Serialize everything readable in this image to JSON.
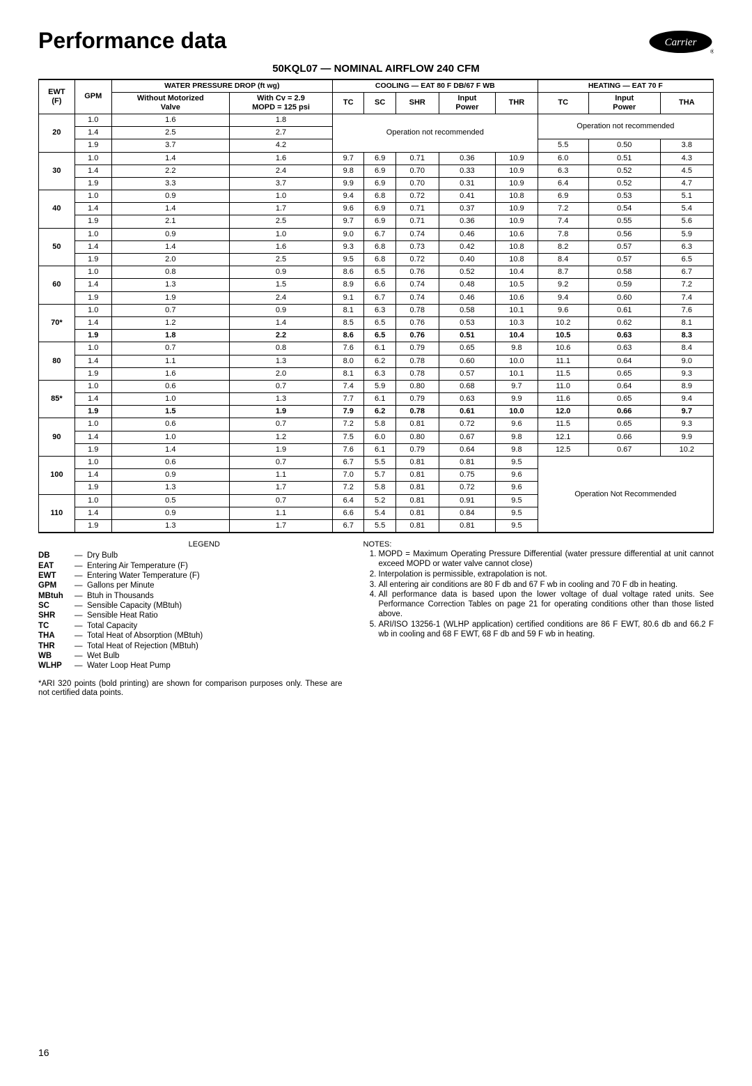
{
  "page_title": "Performance data",
  "brand": "Carrier",
  "subtitle": "50KQL07 — NOMINAL AIRFLOW 240 CFM",
  "page_number": "16",
  "headers": {
    "ewt": "EWT\n(F)",
    "gpm": "GPM",
    "wpd": "WATER PRESSURE DROP (ft wg)",
    "without": "Without Motorized\nValve",
    "with": "With Cv = 2.9\nMOPD = 125 psi",
    "cooling": "COOLING — EAT 80 F DB/67 F WB",
    "heating": "HEATING — EAT 70 F",
    "tc": "TC",
    "sc": "SC",
    "shr": "SHR",
    "inp": "Input\nPower",
    "thr": "THR",
    "tha": "THA"
  },
  "op_not_rec": "Operation not recommended",
  "op_not_rec2": "Operation Not Recommended",
  "groups": [
    {
      "ewt": "20",
      "rows": [
        {
          "gpm": "1.0",
          "wo": "1.6",
          "wi": "1.8",
          "c": null,
          "h": null
        },
        {
          "gpm": "1.4",
          "wo": "2.5",
          "wi": "2.7",
          "c": null,
          "h": null
        },
        {
          "gpm": "1.9",
          "wo": "3.7",
          "wi": "4.2",
          "c": null,
          "h": [
            "5.5",
            "0.50",
            "3.8"
          ]
        }
      ],
      "cool_note": "top",
      "heat_note": "top2"
    },
    {
      "ewt": "30",
      "rows": [
        {
          "gpm": "1.0",
          "wo": "1.4",
          "wi": "1.6",
          "c": [
            "9.7",
            "6.9",
            "0.71",
            "0.36",
            "10.9"
          ],
          "h": [
            "6.0",
            "0.51",
            "4.3"
          ]
        },
        {
          "gpm": "1.4",
          "wo": "2.2",
          "wi": "2.4",
          "c": [
            "9.8",
            "6.9",
            "0.70",
            "0.33",
            "10.9"
          ],
          "h": [
            "6.3",
            "0.52",
            "4.5"
          ]
        },
        {
          "gpm": "1.9",
          "wo": "3.3",
          "wi": "3.7",
          "c": [
            "9.9",
            "6.9",
            "0.70",
            "0.31",
            "10.9"
          ],
          "h": [
            "6.4",
            "0.52",
            "4.7"
          ]
        }
      ]
    },
    {
      "ewt": "40",
      "rows": [
        {
          "gpm": "1.0",
          "wo": "0.9",
          "wi": "1.0",
          "c": [
            "9.4",
            "6.8",
            "0.72",
            "0.41",
            "10.8"
          ],
          "h": [
            "6.9",
            "0.53",
            "5.1"
          ]
        },
        {
          "gpm": "1.4",
          "wo": "1.4",
          "wi": "1.7",
          "c": [
            "9.6",
            "6.9",
            "0.71",
            "0.37",
            "10.9"
          ],
          "h": [
            "7.2",
            "0.54",
            "5.4"
          ]
        },
        {
          "gpm": "1.9",
          "wo": "2.1",
          "wi": "2.5",
          "c": [
            "9.7",
            "6.9",
            "0.71",
            "0.36",
            "10.9"
          ],
          "h": [
            "7.4",
            "0.55",
            "5.6"
          ]
        }
      ]
    },
    {
      "ewt": "50",
      "rows": [
        {
          "gpm": "1.0",
          "wo": "0.9",
          "wi": "1.0",
          "c": [
            "9.0",
            "6.7",
            "0.74",
            "0.46",
            "10.6"
          ],
          "h": [
            "7.8",
            "0.56",
            "5.9"
          ]
        },
        {
          "gpm": "1.4",
          "wo": "1.4",
          "wi": "1.6",
          "c": [
            "9.3",
            "6.8",
            "0.73",
            "0.42",
            "10.8"
          ],
          "h": [
            "8.2",
            "0.57",
            "6.3"
          ]
        },
        {
          "gpm": "1.9",
          "wo": "2.0",
          "wi": "2.5",
          "c": [
            "9.5",
            "6.8",
            "0.72",
            "0.40",
            "10.8"
          ],
          "h": [
            "8.4",
            "0.57",
            "6.5"
          ]
        }
      ]
    },
    {
      "ewt": "60",
      "rows": [
        {
          "gpm": "1.0",
          "wo": "0.8",
          "wi": "0.9",
          "c": [
            "8.6",
            "6.5",
            "0.76",
            "0.52",
            "10.4"
          ],
          "h": [
            "8.7",
            "0.58",
            "6.7"
          ]
        },
        {
          "gpm": "1.4",
          "wo": "1.3",
          "wi": "1.5",
          "c": [
            "8.9",
            "6.6",
            "0.74",
            "0.48",
            "10.5"
          ],
          "h": [
            "9.2",
            "0.59",
            "7.2"
          ]
        },
        {
          "gpm": "1.9",
          "wo": "1.9",
          "wi": "2.4",
          "c": [
            "9.1",
            "6.7",
            "0.74",
            "0.46",
            "10.6"
          ],
          "h": [
            "9.4",
            "0.60",
            "7.4"
          ]
        }
      ]
    },
    {
      "ewt": "70*",
      "rows": [
        {
          "gpm": "1.0",
          "wo": "0.7",
          "wi": "0.9",
          "c": [
            "8.1",
            "6.3",
            "0.78",
            "0.58",
            "10.1"
          ],
          "h": [
            "9.6",
            "0.61",
            "7.6"
          ]
        },
        {
          "gpm": "1.4",
          "wo": "1.2",
          "wi": "1.4",
          "c": [
            "8.5",
            "6.5",
            "0.76",
            "0.53",
            "10.3"
          ],
          "h": [
            "10.2",
            "0.62",
            "8.1"
          ]
        },
        {
          "bold": true,
          "gpm": "1.9",
          "wo": "1.8",
          "wi": "2.2",
          "c": [
            "8.6",
            "6.5",
            "0.76",
            "0.51",
            "10.4"
          ],
          "h": [
            "10.5",
            "0.63",
            "8.3"
          ]
        }
      ]
    },
    {
      "ewt": "80",
      "rows": [
        {
          "gpm": "1.0",
          "wo": "0.7",
          "wi": "0.8",
          "c": [
            "7.6",
            "6.1",
            "0.79",
            "0.65",
            "9.8"
          ],
          "h": [
            "10.6",
            "0.63",
            "8.4"
          ]
        },
        {
          "gpm": "1.4",
          "wo": "1.1",
          "wi": "1.3",
          "c": [
            "8.0",
            "6.2",
            "0.78",
            "0.60",
            "10.0"
          ],
          "h": [
            "11.1",
            "0.64",
            "9.0"
          ]
        },
        {
          "gpm": "1.9",
          "wo": "1.6",
          "wi": "2.0",
          "c": [
            "8.1",
            "6.3",
            "0.78",
            "0.57",
            "10.1"
          ],
          "h": [
            "11.5",
            "0.65",
            "9.3"
          ]
        }
      ]
    },
    {
      "ewt": "85*",
      "rows": [
        {
          "gpm": "1.0",
          "wo": "0.6",
          "wi": "0.7",
          "c": [
            "7.4",
            "5.9",
            "0.80",
            "0.68",
            "9.7"
          ],
          "h": [
            "11.0",
            "0.64",
            "8.9"
          ]
        },
        {
          "gpm": "1.4",
          "wo": "1.0",
          "wi": "1.3",
          "c": [
            "7.7",
            "6.1",
            "0.79",
            "0.63",
            "9.9"
          ],
          "h": [
            "11.6",
            "0.65",
            "9.4"
          ]
        },
        {
          "bold": true,
          "gpm": "1.9",
          "wo": "1.5",
          "wi": "1.9",
          "c": [
            "7.9",
            "6.2",
            "0.78",
            "0.61",
            "10.0"
          ],
          "h": [
            "12.0",
            "0.66",
            "9.7"
          ]
        }
      ]
    },
    {
      "ewt": "90",
      "rows": [
        {
          "gpm": "1.0",
          "wo": "0.6",
          "wi": "0.7",
          "c": [
            "7.2",
            "5.8",
            "0.81",
            "0.72",
            "9.6"
          ],
          "h": [
            "11.5",
            "0.65",
            "9.3"
          ]
        },
        {
          "gpm": "1.4",
          "wo": "1.0",
          "wi": "1.2",
          "c": [
            "7.5",
            "6.0",
            "0.80",
            "0.67",
            "9.8"
          ],
          "h": [
            "12.1",
            "0.66",
            "9.9"
          ]
        },
        {
          "gpm": "1.9",
          "wo": "1.4",
          "wi": "1.9",
          "c": [
            "7.6",
            "6.1",
            "0.79",
            "0.64",
            "9.8"
          ],
          "h": [
            "12.5",
            "0.67",
            "10.2"
          ]
        }
      ]
    },
    {
      "ewt": "100",
      "rows": [
        {
          "gpm": "1.0",
          "wo": "0.6",
          "wi": "0.7",
          "c": [
            "6.7",
            "5.5",
            "0.81",
            "0.81",
            "9.5"
          ],
          "h": null
        },
        {
          "gpm": "1.4",
          "wo": "0.9",
          "wi": "1.1",
          "c": [
            "7.0",
            "5.7",
            "0.81",
            "0.75",
            "9.6"
          ],
          "h": null
        },
        {
          "gpm": "1.9",
          "wo": "1.3",
          "wi": "1.7",
          "c": [
            "7.2",
            "5.8",
            "0.81",
            "0.72",
            "9.6"
          ],
          "h": null
        }
      ],
      "heat_note": "bottom"
    },
    {
      "ewt": "110",
      "rows": [
        {
          "gpm": "1.0",
          "wo": "0.5",
          "wi": "0.7",
          "c": [
            "6.4",
            "5.2",
            "0.81",
            "0.91",
            "9.5"
          ],
          "h": null
        },
        {
          "gpm": "1.4",
          "wo": "0.9",
          "wi": "1.1",
          "c": [
            "6.6",
            "5.4",
            "0.81",
            "0.84",
            "9.5"
          ],
          "h": null
        },
        {
          "gpm": "1.9",
          "wo": "1.3",
          "wi": "1.7",
          "c": [
            "6.7",
            "5.5",
            "0.81",
            "0.81",
            "9.5"
          ],
          "h": null
        }
      ]
    }
  ],
  "legend_title": "LEGEND",
  "legend": [
    {
      "abbr": "DB",
      "def": "Dry Bulb"
    },
    {
      "abbr": "EAT",
      "def": "Entering Air Temperature (F)"
    },
    {
      "abbr": "EWT",
      "def": "Entering Water Temperature (F)"
    },
    {
      "abbr": "GPM",
      "def": "Gallons per Minute"
    },
    {
      "abbr": "MBtuh",
      "def": "Btuh in Thousands"
    },
    {
      "abbr": "SC",
      "def": "Sensible Capacity (MBtuh)"
    },
    {
      "abbr": "SHR",
      "def": "Sensible Heat Ratio"
    },
    {
      "abbr": "TC",
      "def": "Total Capacity"
    },
    {
      "abbr": "THA",
      "def": "Total Heat of Absorption (MBtuh)"
    },
    {
      "abbr": "THR",
      "def": "Total Heat of Rejection (MBtuh)"
    },
    {
      "abbr": "WB",
      "def": "Wet Bulb"
    },
    {
      "abbr": "WLHP",
      "def": "Water Loop Heat Pump"
    }
  ],
  "star_note": "*ARI 320 points (bold printing) are shown for comparison purposes only. These are not certified data points.",
  "notes_title": "NOTES:",
  "notes": [
    "MOPD = Maximum Operating Pressure Differential (water pressure differential at unit cannot exceed MOPD or water valve cannot close)",
    "Interpolation is permissible, extrapolation is not.",
    "All entering air conditions are 80 F db and 67 F wb in cooling and 70 F db in heating.",
    "All performance data is based upon the lower voltage of dual voltage rated units. See Performance Correction Tables on page 21 for operating conditions other than those listed above.",
    "ARI/ISO 13256-1 (WLHP application) certified conditions are 86 F EWT, 80.6 db and 66.2 F wb in cooling and 68 F EWT, 68 F db and 59 F wb in heating."
  ]
}
